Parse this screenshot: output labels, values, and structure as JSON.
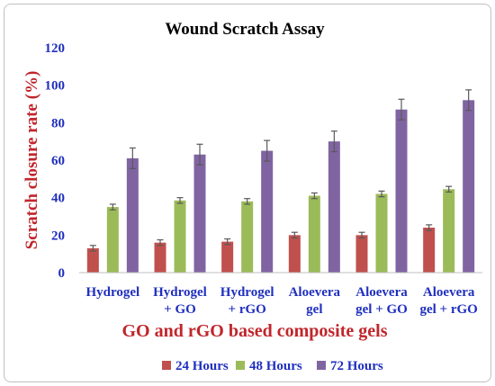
{
  "chart_data": {
    "type": "bar",
    "title": "Wound Scratch Assay",
    "xlabel": "GO and rGO based composite gels",
    "ylabel": "Scratch closure rate (%)",
    "ylim": [
      0,
      120
    ],
    "yticks": [
      "0",
      "20",
      "40",
      "60",
      "80",
      "100",
      "120"
    ],
    "categories": [
      [
        "Hydrogel"
      ],
      [
        "Hydrogel",
        "+ GO"
      ],
      [
        "Hydrogel",
        "+ rGO"
      ],
      [
        "Aloevera",
        "gel"
      ],
      [
        "Aloevera",
        "gel + GO"
      ],
      [
        "Aloevera",
        "gel + rGO"
      ]
    ],
    "series": [
      {
        "name": "24 Hours",
        "color": "#c0504d",
        "values": [
          13,
          16,
          16.5,
          20,
          20,
          24
        ],
        "errors": [
          1.5,
          1.5,
          1.5,
          1.5,
          1.5,
          1.5
        ]
      },
      {
        "name": "48 Hours",
        "color": "#9bbb59",
        "values": [
          35,
          38.5,
          38,
          41,
          42,
          44.5
        ],
        "errors": [
          1.5,
          1.5,
          1.5,
          1.5,
          1.5,
          1.5
        ]
      },
      {
        "name": "72 Hours",
        "color": "#8064a2",
        "values": [
          61,
          63,
          65,
          70,
          87,
          92
        ],
        "errors": [
          5.5,
          5.5,
          5.5,
          5.5,
          5.5,
          5.5
        ]
      }
    ],
    "legend_position": "bottom",
    "grid": false
  }
}
